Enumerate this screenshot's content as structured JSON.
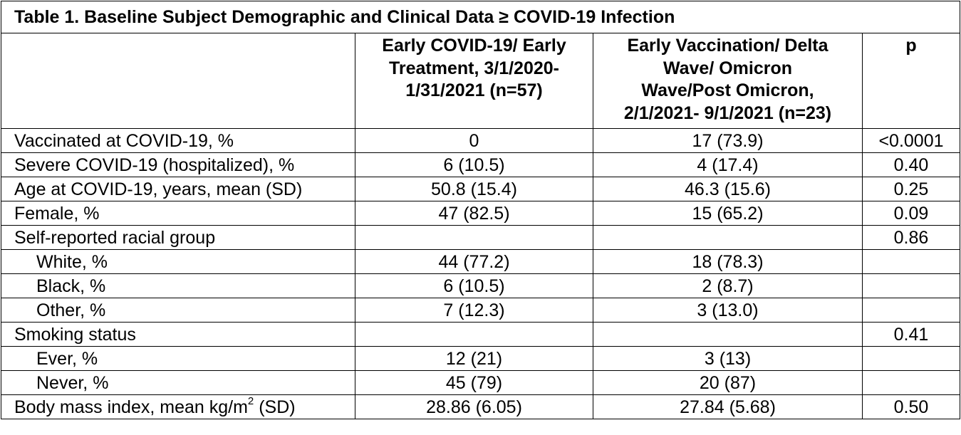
{
  "title": "Table 1. Baseline Subject Demographic and Clinical Data ≥ COVID-19 Infection",
  "columns": [
    "",
    "Early COVID-19/ Early Treatment, 3/1/2020-1/31/2021 (n=57)",
    "Early Vaccination/ Delta Wave/ Omicron Wave/Post Omicron, 2/1/2021- 9/1/2021 (n=23)",
    "p"
  ],
  "header_lines": {
    "col1": [
      "Early COVID-19/ Early",
      "Treatment, 3/1/2020-",
      "1/31/2021 (n=57)"
    ],
    "col2": [
      "Early Vaccination/ Delta",
      "Wave/ Omicron",
      "Wave/Post Omicron,",
      "2/1/2021- 9/1/2021 (n=23)"
    ],
    "col3": [
      "p"
    ]
  },
  "rows": [
    {
      "label": "Vaccinated at COVID-19, %",
      "early": "0",
      "late": "17 (73.9)",
      "p": "<0.0001"
    },
    {
      "label": "Severe COVID-19 (hospitalized), %",
      "early": "6 (10.5)",
      "late": "4 (17.4)",
      "p": "0.40"
    },
    {
      "label": "Age at COVID-19, years, mean (SD)",
      "early": "50.8 (15.4)",
      "late": "46.3 (15.6)",
      "p": "0.25"
    },
    {
      "label": "Female, %",
      "early": "47 (82.5)",
      "late": "15 (65.2)",
      "p": "0.09"
    },
    {
      "label": "Self-reported racial group",
      "early": "",
      "late": "",
      "p": "0.86"
    },
    {
      "label": "White, %",
      "early": "44 (77.2)",
      "late": "18 (78.3)",
      "p": ""
    },
    {
      "label": "Black, %",
      "early": "6 (10.5)",
      "late": "2 (8.7)",
      "p": ""
    },
    {
      "label": "Other, %",
      "early": "7 (12.3)",
      "late": "3 (13.0)",
      "p": ""
    },
    {
      "label": "Smoking status",
      "early": "",
      "late": "",
      "p": "0.41"
    },
    {
      "label": "Ever, %",
      "early": "12 (21)",
      "late": "3 (13)",
      "p": ""
    },
    {
      "label": "Never, %",
      "early": "45 (79)",
      "late": "20 (87)",
      "p": ""
    },
    {
      "label_pre": "Body mass index, mean kg/m",
      "label_sup": "2",
      "label_post": " (SD)",
      "early": "28.86 (6.05)",
      "late": "27.84 (5.68)",
      "p": "0.50"
    }
  ]
}
